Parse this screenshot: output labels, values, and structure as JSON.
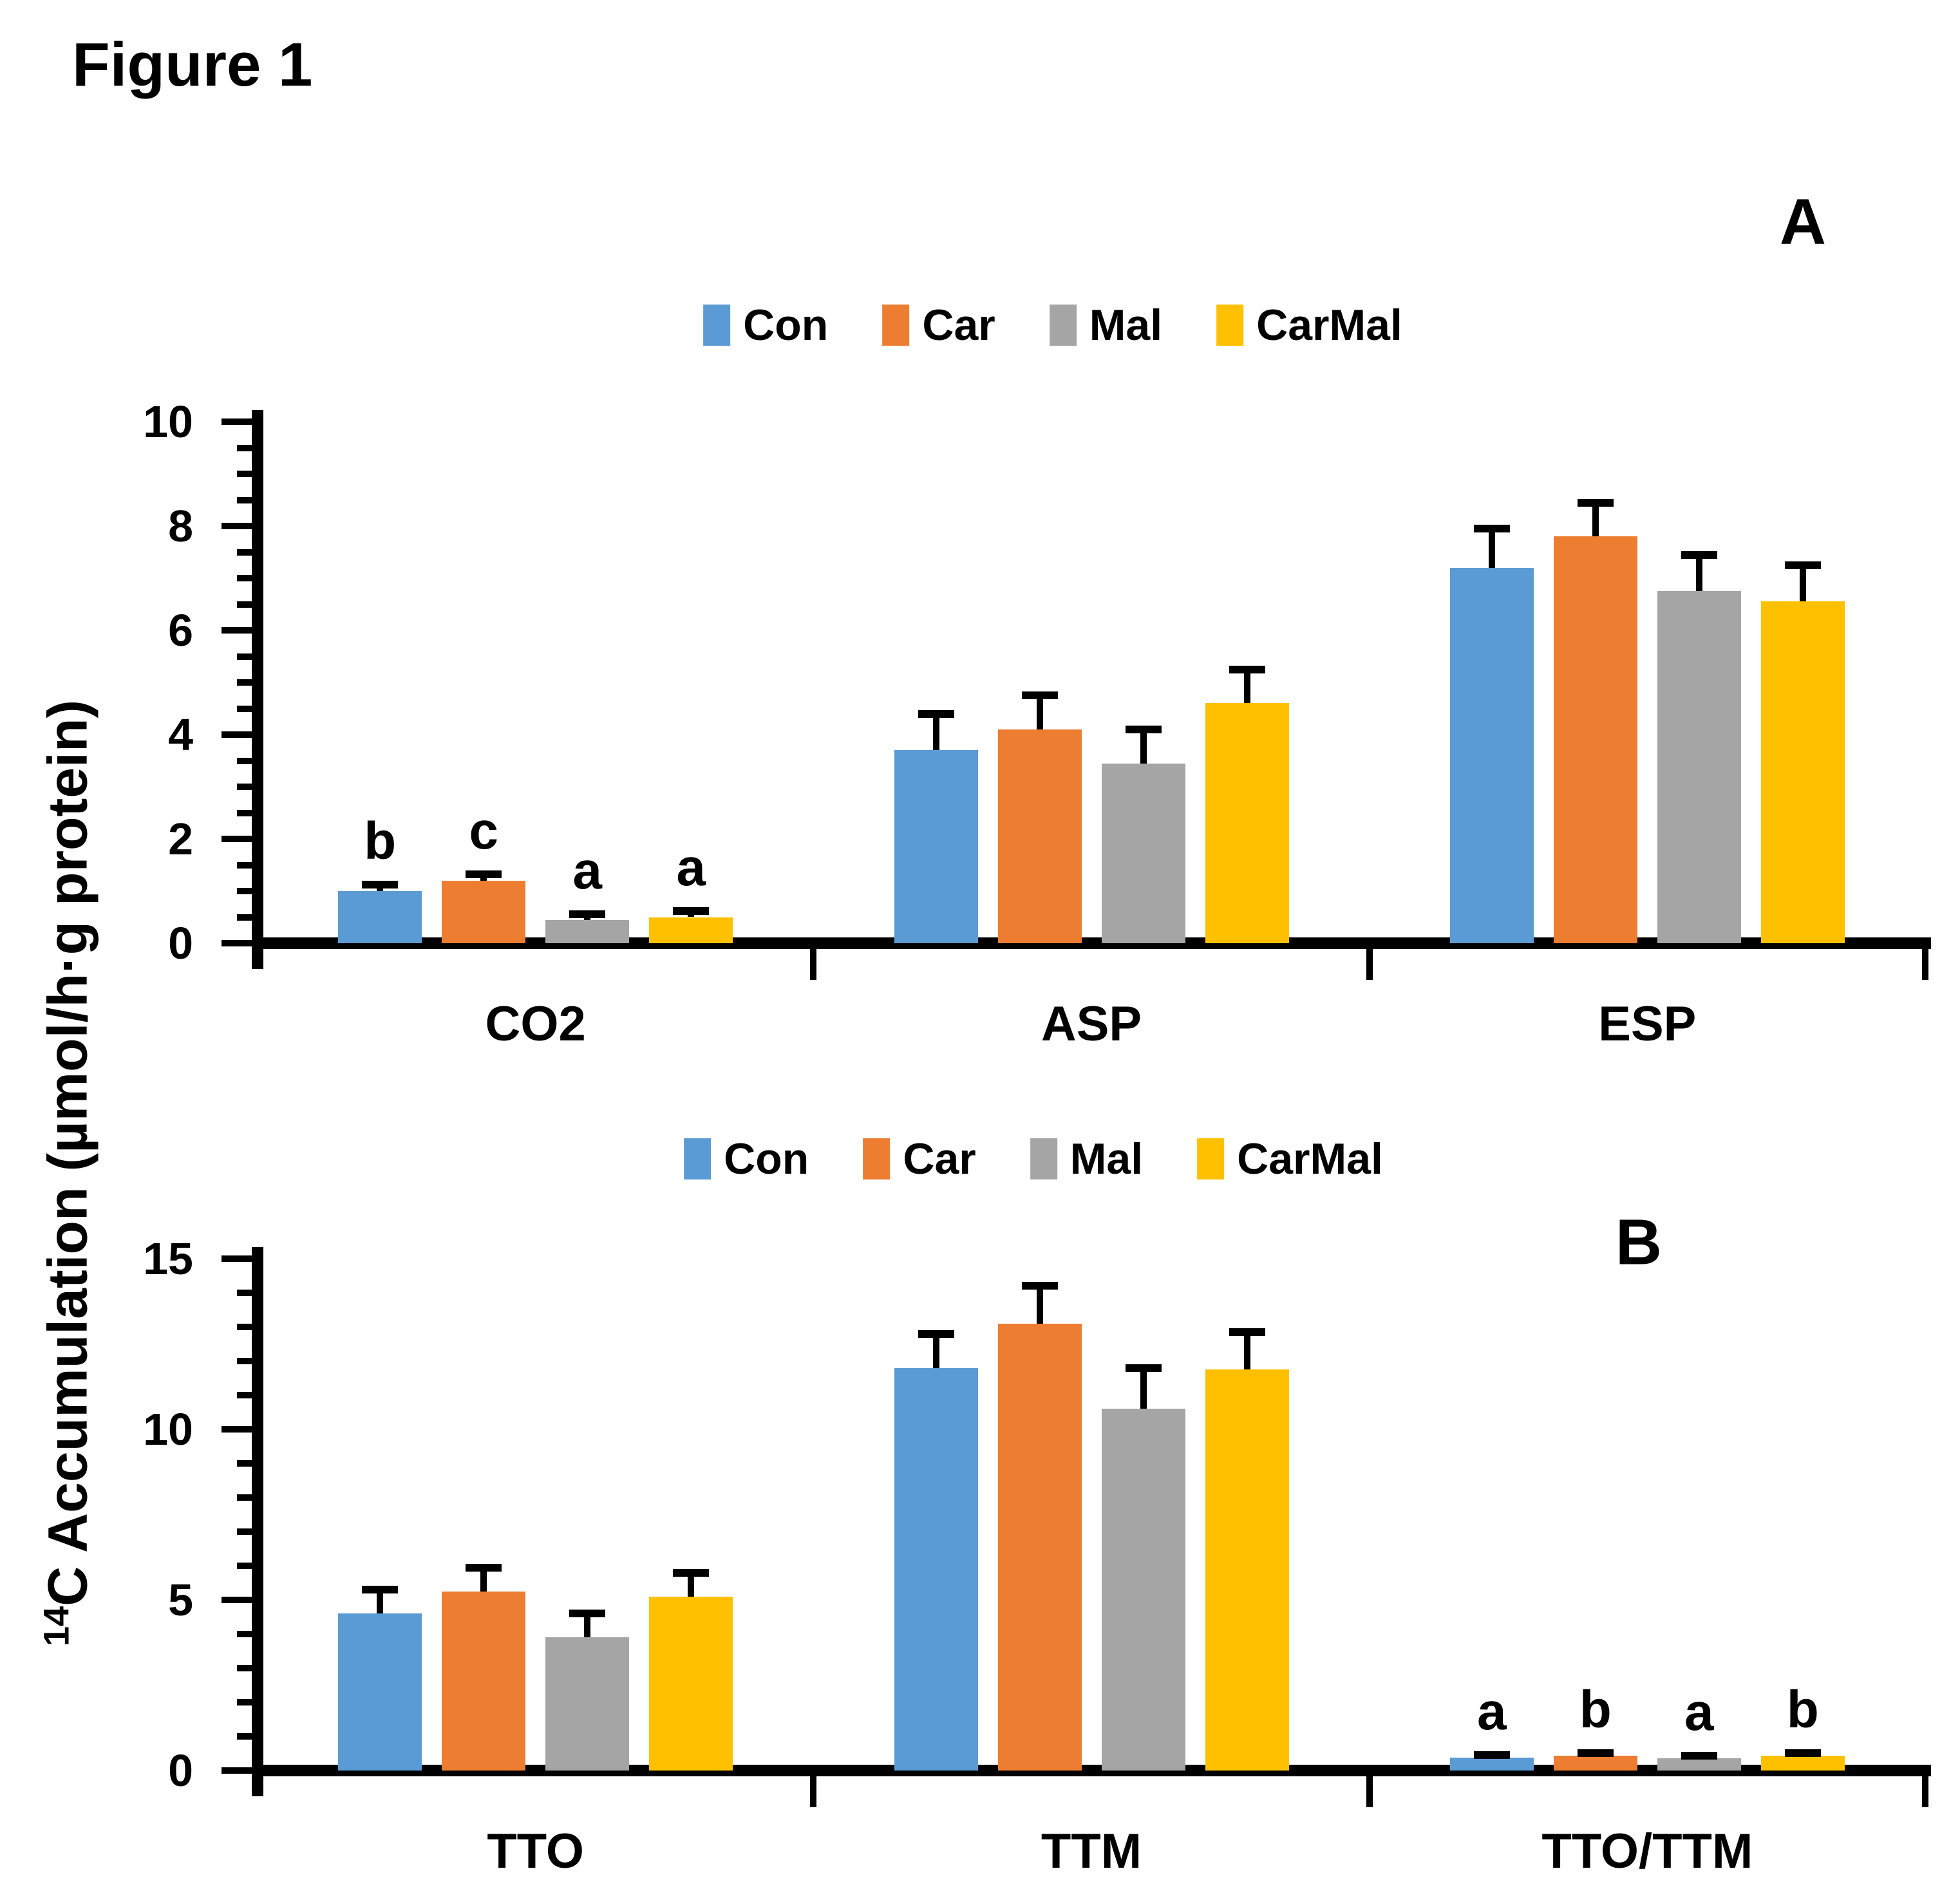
{
  "figure": {
    "title": "Figure 1"
  },
  "ylabel": {
    "sup": "14",
    "text": "C Accumulation (µmol/h·g protein)"
  },
  "colors": {
    "con": "#5B9BD5",
    "car": "#ED7D31",
    "mal": "#A5A5A5",
    "carmal": "#FFC000",
    "axis": "#000000"
  },
  "chart_data": [
    {
      "type": "bar",
      "panel_label": "A",
      "categories": [
        "CO2",
        "ASP",
        "ESP"
      ],
      "ylim": [
        0,
        10
      ],
      "yticks": [
        0,
        2,
        4,
        6,
        8,
        10
      ],
      "minor_tick_step": 0.5,
      "grid": false,
      "legend_position": "top-center",
      "error_bars": "upper",
      "series": [
        {
          "name": "Con",
          "color": "#5B9BD5",
          "values": [
            1.0,
            3.7,
            7.2
          ],
          "errors": [
            0.12,
            0.7,
            0.75
          ],
          "letters": [
            "b",
            "",
            ""
          ]
        },
        {
          "name": "Car",
          "color": "#ED7D31",
          "values": [
            1.2,
            4.1,
            7.8
          ],
          "errors": [
            0.12,
            0.65,
            0.65
          ],
          "letters": [
            "c",
            "",
            ""
          ]
        },
        {
          "name": "Mal",
          "color": "#A5A5A5",
          "values": [
            0.45,
            3.45,
            6.75
          ],
          "errors": [
            0.1,
            0.65,
            0.7
          ],
          "letters": [
            "a",
            "",
            ""
          ]
        },
        {
          "name": "CarMal",
          "color": "#FFC000",
          "values": [
            0.5,
            4.6,
            6.55
          ],
          "errors": [
            0.12,
            0.65,
            0.7
          ],
          "letters": [
            "a",
            "",
            ""
          ]
        }
      ]
    },
    {
      "type": "bar",
      "panel_label": "B",
      "categories": [
        "TTO",
        "TTM",
        "TTO/TTM"
      ],
      "ylim": [
        0,
        15
      ],
      "yticks": [
        0,
        5,
        10,
        15
      ],
      "minor_tick_step": 1,
      "grid": false,
      "legend_position": "top-center",
      "error_bars": "upper",
      "series": [
        {
          "name": "Con",
          "color": "#5B9BD5",
          "values": [
            4.6,
            11.8,
            0.38
          ],
          "errors": [
            0.7,
            1.0,
            0.07
          ],
          "letters": [
            "",
            "",
            "a"
          ]
        },
        {
          "name": "Car",
          "color": "#ED7D31",
          "values": [
            5.25,
            13.1,
            0.43
          ],
          "errors": [
            0.7,
            1.1,
            0.08
          ],
          "letters": [
            "",
            "",
            "b"
          ]
        },
        {
          "name": "Mal",
          "color": "#A5A5A5",
          "values": [
            3.9,
            10.6,
            0.36
          ],
          "errors": [
            0.7,
            1.2,
            0.07
          ],
          "letters": [
            "",
            "",
            "a"
          ]
        },
        {
          "name": "CarMal",
          "color": "#FFC000",
          "values": [
            5.1,
            11.75,
            0.43
          ],
          "errors": [
            0.7,
            1.1,
            0.08
          ],
          "letters": [
            "",
            "",
            "b"
          ]
        }
      ]
    }
  ]
}
